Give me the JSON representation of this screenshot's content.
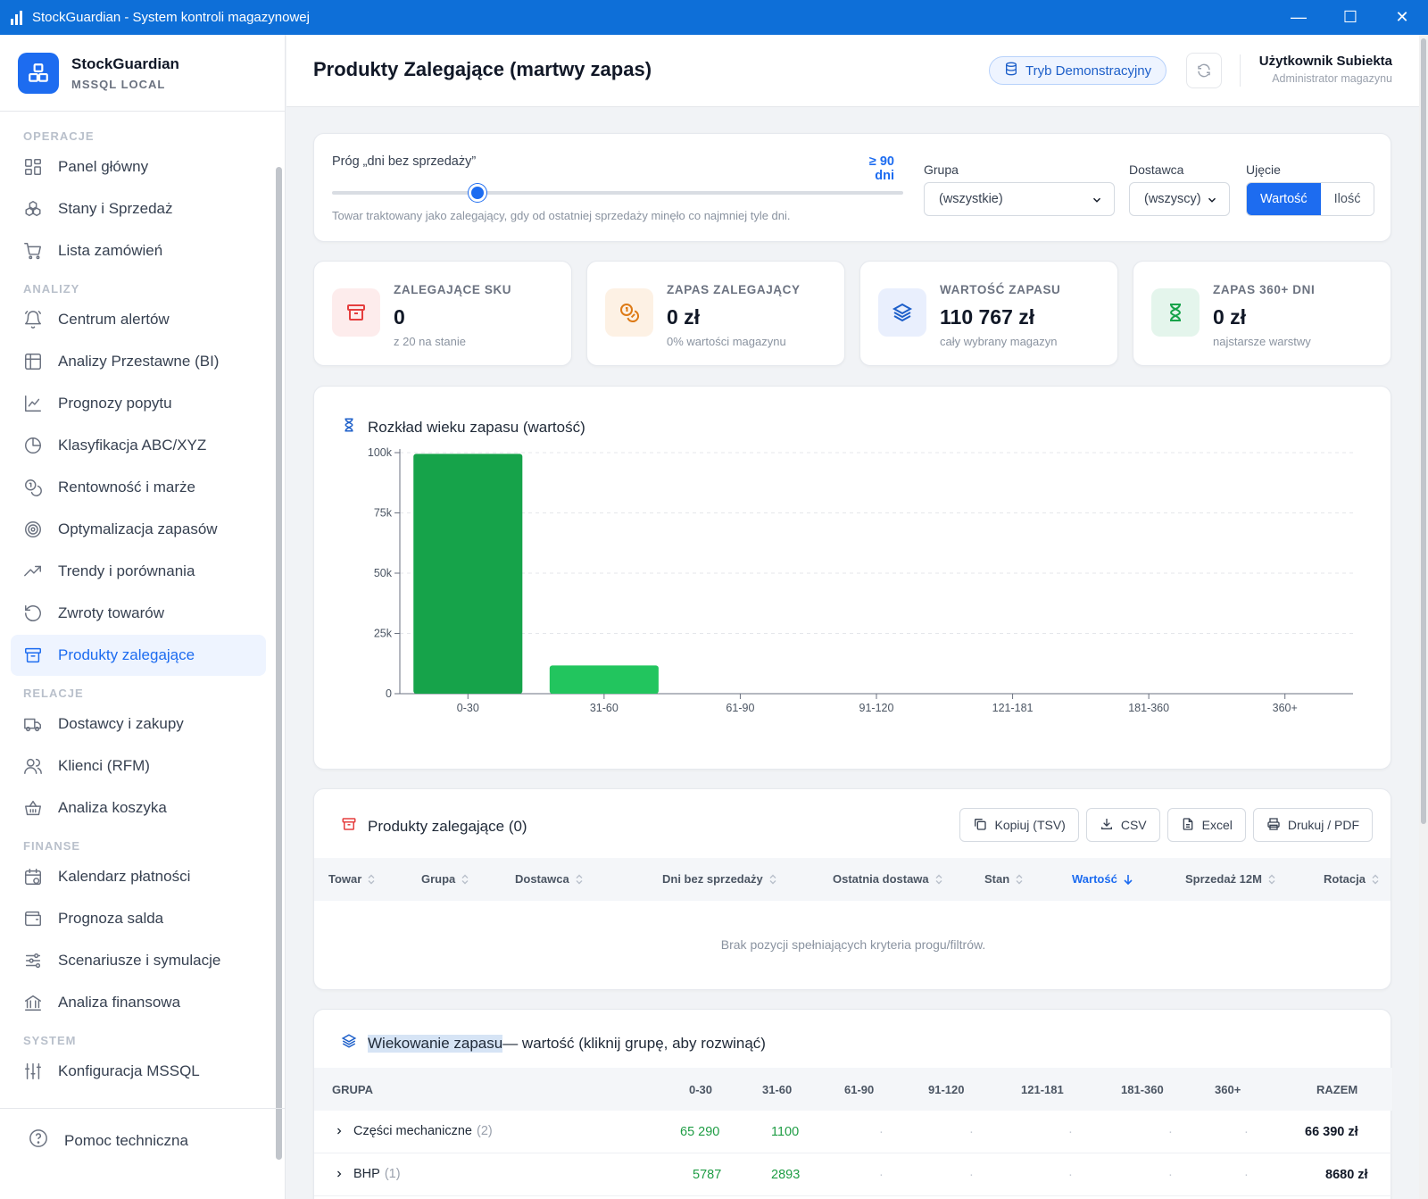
{
  "window": {
    "title": "StockGuardian - System kontroli magazynowej",
    "minimize": "—",
    "maximize": "☐",
    "close": "✕"
  },
  "brand": {
    "name": "StockGuardian",
    "subtitle": "MSSQL LOCAL"
  },
  "sidebar": {
    "sections": [
      {
        "label": "OPERACJE",
        "items": [
          {
            "label": "Panel główny",
            "icon": "grid-icon"
          },
          {
            "label": "Stany i Sprzedaż",
            "icon": "boxes-icon"
          },
          {
            "label": "Lista zamówień",
            "icon": "cart-icon"
          }
        ]
      },
      {
        "label": "ANALIZY",
        "items": [
          {
            "label": "Centrum alertów",
            "icon": "bell-icon"
          },
          {
            "label": "Analizy Przestawne (BI)",
            "icon": "table-icon"
          },
          {
            "label": "Prognozy popytu",
            "icon": "line-chart-icon"
          },
          {
            "label": "Klasyfikacja ABC/XYZ",
            "icon": "pie-icon"
          },
          {
            "label": "Rentowność i marże",
            "icon": "coins-icon"
          },
          {
            "label": "Optymalizacja zapasów",
            "icon": "target-icon"
          },
          {
            "label": "Trendy i porównania",
            "icon": "trend-icon"
          },
          {
            "label": "Zwroty towarów",
            "icon": "undo-icon"
          },
          {
            "label": "Produkty zalegające",
            "icon": "archive-icon",
            "active": true
          }
        ]
      },
      {
        "label": "RELACJE",
        "items": [
          {
            "label": "Dostawcy i zakupy",
            "icon": "truck-icon"
          },
          {
            "label": "Klienci (RFM)",
            "icon": "users-icon"
          },
          {
            "label": "Analiza koszyka",
            "icon": "basket-icon"
          }
        ]
      },
      {
        "label": "FINANSE",
        "items": [
          {
            "label": "Kalendarz płatności",
            "icon": "calendar-icon"
          },
          {
            "label": "Prognoza salda",
            "icon": "wallet-icon"
          },
          {
            "label": "Scenariusze i symulacje",
            "icon": "sliders-icon"
          },
          {
            "label": "Analiza finansowa",
            "icon": "bank-icon"
          }
        ]
      },
      {
        "label": "SYSTEM",
        "items": [
          {
            "label": "Konfiguracja MSSQL",
            "icon": "settings-sliders-icon"
          }
        ]
      }
    ],
    "help": "Pomoc techniczna"
  },
  "header": {
    "title": "Produkty Zalegające (martwy zapas)",
    "demo_badge": "Tryb Demonstracyjny",
    "user_name": "Użytkownik Subiekta",
    "user_role": "Administrator magazynu"
  },
  "filters": {
    "threshold_label": "Próg „dni bez sprzedaży”",
    "threshold_value": "≥ 90 dni",
    "threshold_fraction": 0.255,
    "threshold_hint": "Towar traktowany jako zalegający, gdy od ostatniej sprzedaży minęło co najmniej tyle dni.",
    "group_label": "Grupa",
    "group_value": "(wszystkie)",
    "supplier_label": "Dostawca",
    "supplier_value": "(wszyscy)",
    "view_label": "Ujęcie",
    "view_options": [
      "Wartość",
      "Ilość"
    ]
  },
  "kpis": [
    {
      "title": "ZALEGAJĄCE SKU",
      "value": "0",
      "sub": "z 20 na stanie",
      "icon": "archive-icon",
      "bg": "#fdecec",
      "fg": "#e53e3e"
    },
    {
      "title": "ZAPAS ZALEGAJĄCY",
      "value": "0 zł",
      "sub": "0% wartości magazynu",
      "icon": "coins-icon",
      "bg": "#fdf1e4",
      "fg": "#dd7a16"
    },
    {
      "title": "WARTOŚĆ ZAPASU",
      "value": "110 767 zł",
      "sub": "cały wybrany magazyn",
      "icon": "layers-icon",
      "bg": "#e9effd",
      "fg": "#1d5fc9"
    },
    {
      "title": "ZAPAS 360+ DNI",
      "value": "0 zł",
      "sub": "najstarsze warstwy",
      "icon": "hourglass-icon",
      "bg": "#e4f5ec",
      "fg": "#16a34a"
    }
  ],
  "chart_title": "Rozkład wieku zapasu (wartość)",
  "chart_data": {
    "type": "bar",
    "title": "Rozkład wieku zapasu (wartość)",
    "categories": [
      "0-30",
      "31-60",
      "61-90",
      "91-120",
      "121-181",
      "181-360",
      "360+"
    ],
    "values": [
      99500,
      11700,
      0,
      0,
      0,
      0,
      0
    ],
    "yticks": [
      0,
      25000,
      50000,
      75000,
      100000
    ],
    "ytick_labels": [
      "0",
      "25k",
      "50k",
      "75k",
      "100k"
    ],
    "ylim": [
      0,
      100000
    ],
    "colors": [
      "#16a34a",
      "#22c55e"
    ],
    "grid": true
  },
  "table": {
    "title": "Produkty zalegające (0)",
    "actions": [
      {
        "label": "Kopiuj (TSV)",
        "icon": "copy-icon"
      },
      {
        "label": "CSV",
        "icon": "download-icon"
      },
      {
        "label": "Excel",
        "icon": "file-icon"
      },
      {
        "label": "Drukuj / PDF",
        "icon": "printer-icon"
      }
    ],
    "columns": [
      "Towar",
      "Grupa",
      "Dostawca",
      "Dni bez sprzedaży",
      "Ostatnia dostawa",
      "Stan",
      "Wartość",
      "Sprzedaż 12M",
      "Rotacja"
    ],
    "sorted_column": "Wartość",
    "empty": "Brak pozycji spełniających kryteria progu/filtrów."
  },
  "aging": {
    "title_highlight": "Wiekowanie zapasu",
    "title_rest": " — wartość (kliknij grupę, aby rozwinąć)",
    "columns": [
      "GRUPA",
      "0-30",
      "31-60",
      "61-90",
      "91-120",
      "121-181",
      "181-360",
      "360+",
      "RAZEM"
    ],
    "rows": [
      {
        "group": "Części mechaniczne",
        "count": "(2)",
        "c0": "65 290",
        "c1": "1100",
        "c2": "·",
        "c3": "·",
        "c4": "·",
        "c5": "·",
        "c6": "·",
        "total": "66 390 zł"
      },
      {
        "group": "BHP",
        "count": "(1)",
        "c0": "5787",
        "c1": "2893",
        "c2": "·",
        "c3": "·",
        "c4": "·",
        "c5": "·",
        "c6": "·",
        "total": "8680 zł"
      }
    ]
  }
}
